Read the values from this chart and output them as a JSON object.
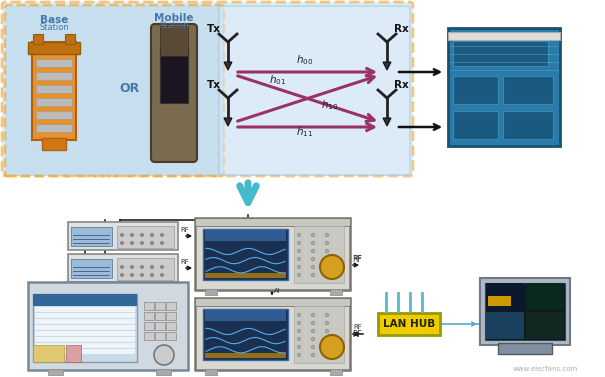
{
  "bg_color": "#ffffff",
  "top_box_color": "#c5dff0",
  "top_box_border": "#f0a020",
  "left_box_color": "#b8d4ea",
  "channel_box_color": "#daeaf8",
  "channel_box_border": "#aaccdd",
  "arrow_magenta": "#993366",
  "arrow_cyan": "#44bbcc",
  "arrow_black": "#111111",
  "text_blue": "#4477aa",
  "lan_hub_color": "#eecc00",
  "lan_hub_text": "#222200",
  "base_label": "Base",
  "mobile_label": "Mobile",
  "or_label": "OR",
  "tx_labels": [
    "Tx",
    "Tx"
  ],
  "rx_labels": [
    "Rx",
    "Rx"
  ],
  "h_labels": [
    "h₀₀",
    "h₀₁",
    "h₁₀",
    "h₁₁"
  ],
  "lan_hub_label": "LAN HUB",
  "watermark": "www.elecfans.com"
}
